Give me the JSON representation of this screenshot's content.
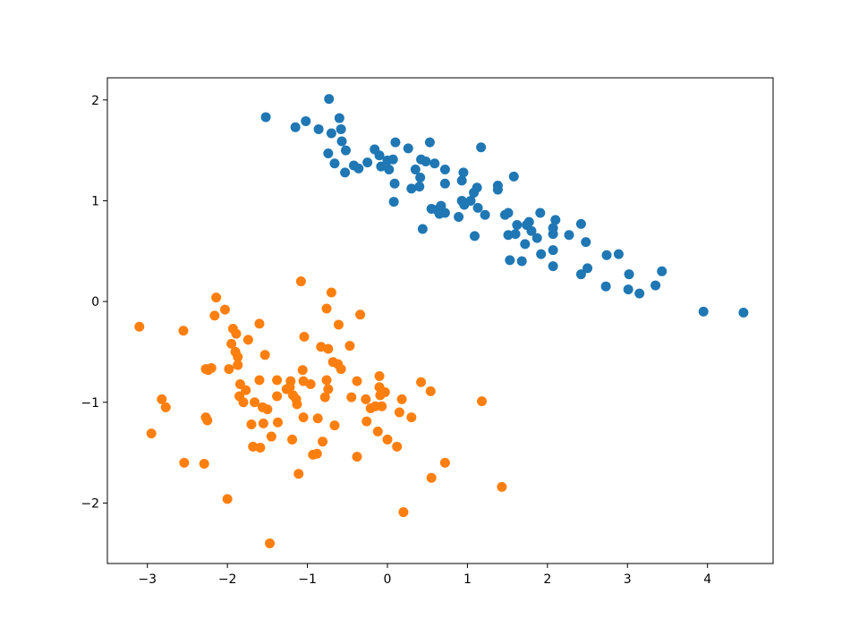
{
  "chart_data": {
    "type": "scatter",
    "title": "",
    "xlabel": "",
    "ylabel": "",
    "xlim": [
      -3.5,
      4.82
    ],
    "ylim": [
      -2.6,
      2.22
    ],
    "xticks": [
      -3,
      -2,
      -1,
      0,
      1,
      2,
      3,
      4
    ],
    "yticks": [
      -2,
      -1,
      0,
      1,
      2
    ],
    "xtick_labels": [
      "−3",
      "−2",
      "−1",
      "0",
      "1",
      "2",
      "3",
      "4"
    ],
    "ytick_labels": [
      "−2",
      "−1",
      "0",
      "1",
      "2"
    ],
    "grid": false,
    "series": [
      {
        "color": "#1f77b4",
        "points": [
          [
            -1.52,
            1.83
          ],
          [
            -0.73,
            2.01
          ],
          [
            -1.15,
            1.73
          ],
          [
            -1.02,
            1.79
          ],
          [
            -0.86,
            1.71
          ],
          [
            -0.7,
            1.67
          ],
          [
            -0.6,
            1.82
          ],
          [
            -0.58,
            1.71
          ],
          [
            -0.57,
            1.59
          ],
          [
            -0.52,
            1.5
          ],
          [
            -0.74,
            1.47
          ],
          [
            -0.66,
            1.37
          ],
          [
            -0.53,
            1.28
          ],
          [
            -0.42,
            1.35
          ],
          [
            -0.36,
            1.32
          ],
          [
            -0.25,
            1.38
          ],
          [
            -0.16,
            1.51
          ],
          [
            -0.1,
            1.45
          ],
          [
            -0.08,
            1.34
          ],
          [
            0.0,
            1.4
          ],
          [
            0.02,
            1.31
          ],
          [
            0.07,
            1.41
          ],
          [
            0.1,
            1.58
          ],
          [
            0.09,
            1.17
          ],
          [
            0.08,
            0.99
          ],
          [
            0.26,
            1.52
          ],
          [
            0.35,
            1.31
          ],
          [
            0.42,
            1.41
          ],
          [
            0.41,
            1.23
          ],
          [
            0.48,
            1.39
          ],
          [
            0.3,
            1.12
          ],
          [
            0.4,
            1.14
          ],
          [
            0.53,
            1.58
          ],
          [
            0.59,
            1.37
          ],
          [
            0.72,
            1.31
          ],
          [
            0.72,
            1.17
          ],
          [
            0.55,
            0.92
          ],
          [
            0.62,
            0.91
          ],
          [
            0.67,
            0.95
          ],
          [
            0.72,
            0.88
          ],
          [
            0.65,
            0.87
          ],
          [
            0.44,
            0.72
          ],
          [
            0.89,
            0.84
          ],
          [
            0.93,
            1.2
          ],
          [
            0.95,
            1.28
          ],
          [
            0.93,
            1.0
          ],
          [
            0.96,
            0.96
          ],
          [
            1.04,
            1.0
          ],
          [
            1.08,
            1.08
          ],
          [
            1.12,
            1.13
          ],
          [
            1.17,
            1.53
          ],
          [
            1.13,
            0.93
          ],
          [
            1.22,
            0.86
          ],
          [
            1.09,
            0.65
          ],
          [
            1.38,
            1.15
          ],
          [
            1.38,
            1.11
          ],
          [
            1.47,
            0.86
          ],
          [
            1.51,
            0.88
          ],
          [
            1.58,
            1.24
          ],
          [
            1.51,
            0.66
          ],
          [
            1.6,
            0.67
          ],
          [
            1.62,
            0.76
          ],
          [
            1.74,
            0.76
          ],
          [
            1.77,
            0.79
          ],
          [
            1.8,
            0.7
          ],
          [
            1.72,
            0.57
          ],
          [
            1.68,
            0.4
          ],
          [
            1.53,
            0.41
          ],
          [
            1.91,
            0.88
          ],
          [
            1.87,
            0.63
          ],
          [
            2.1,
            0.81
          ],
          [
            2.07,
            0.73
          ],
          [
            2.07,
            0.67
          ],
          [
            2.27,
            0.66
          ],
          [
            2.42,
            0.77
          ],
          [
            2.07,
            0.51
          ],
          [
            1.92,
            0.47
          ],
          [
            2.07,
            0.35
          ],
          [
            2.48,
            0.59
          ],
          [
            2.5,
            0.33
          ],
          [
            2.42,
            0.27
          ],
          [
            2.74,
            0.46
          ],
          [
            2.89,
            0.47
          ],
          [
            2.73,
            0.15
          ],
          [
            3.02,
            0.27
          ],
          [
            3.01,
            0.12
          ],
          [
            3.15,
            0.08
          ],
          [
            3.35,
            0.16
          ],
          [
            3.43,
            0.3
          ],
          [
            3.95,
            -0.1
          ],
          [
            4.45,
            -0.11
          ]
        ]
      },
      {
        "color": "#ff7f0e",
        "points": [
          [
            -3.1,
            -0.25
          ],
          [
            -2.95,
            -1.31
          ],
          [
            -2.82,
            -0.97
          ],
          [
            -2.77,
            -1.05
          ],
          [
            -2.55,
            -0.29
          ],
          [
            -2.54,
            -1.6
          ],
          [
            -2.29,
            -1.61
          ],
          [
            -2.27,
            -1.15
          ],
          [
            -2.25,
            -1.18
          ],
          [
            -2.27,
            -0.67
          ],
          [
            -2.24,
            -0.68
          ],
          [
            -2.2,
            -0.66
          ],
          [
            -2.16,
            -0.14
          ],
          [
            -2.14,
            0.04
          ],
          [
            -2.03,
            -0.08
          ],
          [
            -2.0,
            -1.96
          ],
          [
            -1.98,
            -0.67
          ],
          [
            -1.95,
            -0.42
          ],
          [
            -1.93,
            -0.27
          ],
          [
            -1.9,
            -0.5
          ],
          [
            -1.89,
            -0.32
          ],
          [
            -1.87,
            -0.55
          ],
          [
            -1.87,
            -0.63
          ],
          [
            -1.84,
            -0.82
          ],
          [
            -1.85,
            -0.94
          ],
          [
            -1.8,
            -1.0
          ],
          [
            -1.77,
            -0.88
          ],
          [
            -1.74,
            -0.38
          ],
          [
            -1.7,
            -1.22
          ],
          [
            -1.66,
            -1.0
          ],
          [
            -1.68,
            -1.44
          ],
          [
            -1.6,
            -0.78
          ],
          [
            -1.6,
            -0.22
          ],
          [
            -1.59,
            -1.45
          ],
          [
            -1.56,
            -1.05
          ],
          [
            -1.55,
            -1.21
          ],
          [
            -1.53,
            -0.53
          ],
          [
            -1.5,
            -1.07
          ],
          [
            -1.47,
            -2.4
          ],
          [
            -1.45,
            -1.34
          ],
          [
            -1.38,
            -0.94
          ],
          [
            -1.37,
            -1.2
          ],
          [
            -1.38,
            -0.78
          ],
          [
            -1.26,
            -0.87
          ],
          [
            -1.22,
            -0.85
          ],
          [
            -1.21,
            -0.79
          ],
          [
            -1.19,
            -1.37
          ],
          [
            -1.18,
            -0.93
          ],
          [
            -1.14,
            -0.97
          ],
          [
            -1.13,
            -1.02
          ],
          [
            -1.11,
            -1.71
          ],
          [
            -1.08,
            0.2
          ],
          [
            -1.06,
            -0.68
          ],
          [
            -1.05,
            -1.15
          ],
          [
            -1.05,
            -0.79
          ],
          [
            -1.04,
            -0.35
          ],
          [
            -0.96,
            -0.82
          ],
          [
            -0.93,
            -1.52
          ],
          [
            -0.88,
            -1.51
          ],
          [
            -0.87,
            -1.16
          ],
          [
            -0.83,
            -0.45
          ],
          [
            -0.81,
            -1.39
          ],
          [
            -0.78,
            -0.95
          ],
          [
            -0.76,
            -0.07
          ],
          [
            -0.76,
            -0.78
          ],
          [
            -0.74,
            -0.47
          ],
          [
            -0.74,
            -0.87
          ],
          [
            -0.7,
            0.09
          ],
          [
            -0.68,
            -0.6
          ],
          [
            -0.66,
            -1.23
          ],
          [
            -0.62,
            -0.62
          ],
          [
            -0.61,
            -0.23
          ],
          [
            -0.58,
            -0.67
          ],
          [
            -0.47,
            -0.44
          ],
          [
            -0.45,
            -0.95
          ],
          [
            -0.38,
            -0.79
          ],
          [
            -0.38,
            -1.54
          ],
          [
            -0.34,
            -0.13
          ],
          [
            -0.27,
            -0.97
          ],
          [
            -0.26,
            -1.19
          ],
          [
            -0.21,
            -1.06
          ],
          [
            -0.15,
            -1.04
          ],
          [
            -0.12,
            -1.29
          ],
          [
            -0.1,
            -0.85
          ],
          [
            -0.1,
            -0.74
          ],
          [
            -0.09,
            -0.93
          ],
          [
            -0.07,
            -1.04
          ],
          [
            -0.03,
            -0.9
          ],
          [
            0.0,
            -1.37
          ],
          [
            0.12,
            -1.44
          ],
          [
            0.15,
            -1.1
          ],
          [
            0.18,
            -0.97
          ],
          [
            0.2,
            -2.09
          ],
          [
            0.3,
            -1.15
          ],
          [
            0.42,
            -0.8
          ],
          [
            0.54,
            -0.89
          ],
          [
            0.55,
            -1.75
          ],
          [
            0.72,
            -1.6
          ],
          [
            1.18,
            -0.99
          ],
          [
            1.43,
            -1.84
          ]
        ]
      }
    ]
  }
}
